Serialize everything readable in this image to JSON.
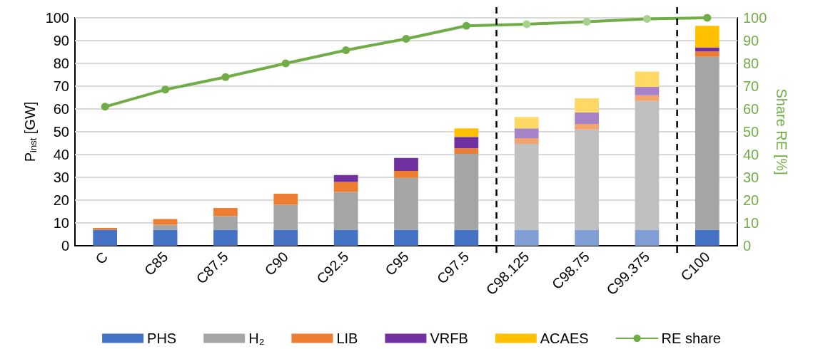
{
  "chart_data": {
    "type": "bar",
    "stacked": true,
    "ylabel": "P$_{inst}$ [GW]",
    "y2label": "Share RE [%]",
    "categories": [
      "C",
      "C85",
      "C87.5",
      "C90",
      "C92.5",
      "C95",
      "C97.5",
      "C98.125",
      "C98.75",
      "C99.375",
      "C100"
    ],
    "series": [
      {
        "name": "PHS",
        "color": "#4472c4",
        "colors": [
          "#4472c4",
          "#4472c4",
          "#4472c4",
          "#4472c4",
          "#4472c4",
          "#4472c4",
          "#4472c4",
          "#7f9fd6",
          "#7f9fd6",
          "#7f9fd6",
          "#4472c4"
        ],
        "values": [
          7,
          7,
          7,
          7,
          7,
          7,
          7,
          7,
          7,
          7,
          7
        ]
      },
      {
        "name": "H₂",
        "color": "#a5a5a5",
        "colors": [
          "#a5a5a5",
          "#a5a5a5",
          "#a5a5a5",
          "#a5a5a5",
          "#a5a5a5",
          "#a5a5a5",
          "#a5a5a5",
          "#c0c0c0",
          "#c0c0c0",
          "#c0c0c0",
          "#a5a5a5"
        ],
        "values": [
          0,
          2.2,
          6,
          11,
          16.6,
          22.8,
          33.3,
          37.7,
          44,
          56.5,
          75.9
        ]
      },
      {
        "name": "LIB",
        "color": "#ed7d31",
        "colors": [
          "#ed7d31",
          "#ed7d31",
          "#ed7d31",
          "#ed7d31",
          "#ed7d31",
          "#ed7d31",
          "#ed7d31",
          "#f1a46c",
          "#f1a46c",
          "#f1a46c",
          "#ed7d31"
        ],
        "values": [
          0.8,
          2.5,
          3.6,
          4.8,
          4.4,
          3,
          2.4,
          2.5,
          2.4,
          2.5,
          2.3
        ]
      },
      {
        "name": "VRFB",
        "color": "#7030a0",
        "colors": [
          "#7030a0",
          "#7030a0",
          "#7030a0",
          "#7030a0",
          "#7030a0",
          "#7030a0",
          "#7030a0",
          "#a683c6",
          "#a683c6",
          "#a683c6",
          "#7030a0"
        ],
        "values": [
          0,
          0,
          0,
          0,
          3,
          5.7,
          5,
          4.3,
          5.1,
          3.7,
          1.8
        ]
      },
      {
        "name": "ACAES",
        "color": "#ffc000",
        "colors": [
          "#ffc000",
          "#ffc000",
          "#ffc000",
          "#ffc000",
          "#ffc000",
          "#ffc000",
          "#ffc000",
          "#fed966",
          "#fed966",
          "#fed966",
          "#ffc000"
        ],
        "values": [
          0,
          0,
          0,
          0,
          0,
          0,
          3.8,
          5,
          6.2,
          6.7,
          9.5
        ]
      },
      {
        "name": "RE share",
        "type": "line",
        "axis": "y2",
        "color": "#70ad47",
        "colors": [
          "#70ad47",
          "#70ad47",
          "#70ad47",
          "#70ad47",
          "#70ad47",
          "#70ad47",
          "#70ad47",
          "#a9d18e",
          "#a9d18e",
          "#a9d18e",
          "#70ad47"
        ],
        "marker": "circle",
        "values": [
          61,
          68.5,
          74,
          80,
          85.8,
          90.8,
          96.5,
          97.2,
          98.3,
          99.5,
          100
        ]
      }
    ],
    "ylim": [
      0,
      100
    ],
    "yticks": [
      0,
      10,
      20,
      30,
      40,
      50,
      60,
      70,
      80,
      90,
      100
    ],
    "y2lim": [
      0,
      100
    ],
    "y2ticks": [
      0,
      10,
      20,
      30,
      40,
      50,
      60,
      70,
      80,
      90,
      100
    ],
    "grid": "y",
    "legend": "bottom"
  }
}
